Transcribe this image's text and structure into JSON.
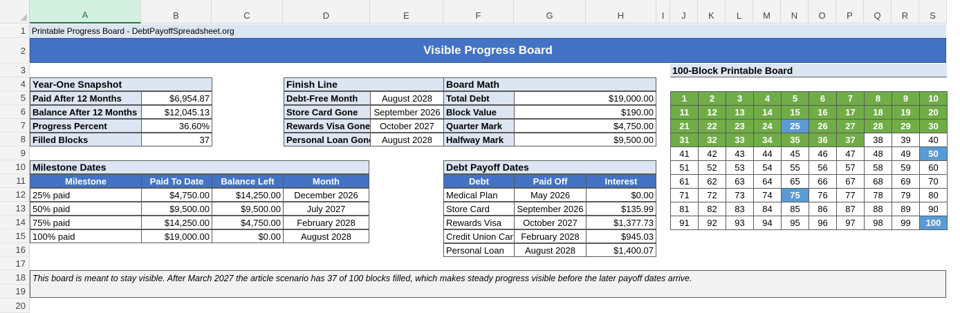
{
  "sheet": {
    "columns": [
      "A",
      "B",
      "C",
      "D",
      "E",
      "F",
      "G",
      "H",
      "I",
      "J",
      "K",
      "L",
      "M",
      "N",
      "O",
      "P",
      "Q",
      "R",
      "S"
    ],
    "rows": [
      "1",
      "2",
      "3",
      "4",
      "5",
      "6",
      "7",
      "8",
      "9",
      "10",
      "11",
      "12",
      "13",
      "14",
      "15",
      "16",
      "17",
      "18",
      "19",
      "20"
    ],
    "selected_column": "A"
  },
  "top_label": "Printable Progress Board - DebtPayoffSpreadsheet.org",
  "banner_title": "Visible Progress Board",
  "snapshot": {
    "title": "Year-One Snapshot",
    "rows": [
      {
        "label": "Paid After 12 Months",
        "value": "$6,954.87"
      },
      {
        "label": "Balance After 12 Months",
        "value": "$12,045.13"
      },
      {
        "label": "Progress Percent",
        "value": "36.60%"
      },
      {
        "label": "Filled Blocks",
        "value": "37"
      }
    ]
  },
  "finish_line": {
    "title": "Finish Line",
    "rows": [
      {
        "label": "Debt-Free Month",
        "value": "August 2028"
      },
      {
        "label": "Store Card Gone",
        "value": "September 2026"
      },
      {
        "label": "Rewards Visa Gone",
        "value": "October 2027"
      },
      {
        "label": "Personal Loan Gone",
        "value": "August 2028"
      }
    ]
  },
  "board_math": {
    "title": "Board Math",
    "rows": [
      {
        "label": "Total Debt",
        "value": "$19,000.00"
      },
      {
        "label": "Block Value",
        "value": "$190.00"
      },
      {
        "label": "Quarter Mark",
        "value": "$4,750.00"
      },
      {
        "label": "Halfway Mark",
        "value": "$9,500.00"
      }
    ]
  },
  "milestones": {
    "title": "Milestone Dates",
    "headers": [
      "Milestone",
      "Paid To Date",
      "Balance Left",
      "Month"
    ],
    "rows": [
      [
        "25% paid",
        "$4,750.00",
        "$14,250.00",
        "December 2026"
      ],
      [
        "50% paid",
        "$9,500.00",
        "$9,500.00",
        "July 2027"
      ],
      [
        "75% paid",
        "$14,250.00",
        "$4,750.00",
        "February 2028"
      ],
      [
        "100% paid",
        "$19,000.00",
        "$0.00",
        "August 2028"
      ]
    ]
  },
  "payoff_dates": {
    "title": "Debt Payoff Dates",
    "headers": [
      "Debt",
      "Paid Off",
      "Interest"
    ],
    "rows": [
      [
        "Medical Plan",
        "May 2026",
        "$0.00"
      ],
      [
        "Store Card",
        "September 2026",
        "$135.99"
      ],
      [
        "Rewards Visa",
        "October 2027",
        "$1,377.73"
      ],
      [
        "Credit Union Car",
        "February 2028",
        "$945.03"
      ],
      [
        "Personal Loan",
        "August 2028",
        "$1,400.07"
      ]
    ]
  },
  "board": {
    "title": "100-Block Printable Board",
    "total_blocks": 100,
    "filled_blocks": 37,
    "milestone_blocks": [
      25,
      50,
      75,
      100
    ],
    "colors": {
      "filled": "#70ad47",
      "milestone": "#5b9bd5",
      "empty": "#ffffff"
    }
  },
  "note": "This board is meant to stay visible. After March 2027 the article scenario has 37 of 100 blocks filled, which makes steady progress visible before the later payoff dates arrive."
}
